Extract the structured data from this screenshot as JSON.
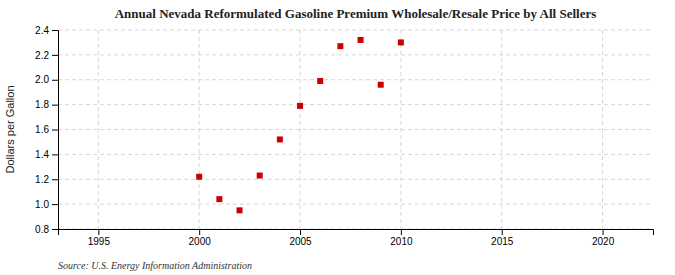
{
  "chart_data": {
    "type": "scatter",
    "title": "Annual Nevada Reformulated Gasoline Premium Wholesale/Resale Price by All Sellers",
    "ylabel": "Dollars per Gallon",
    "source": "Source: U.S. Energy Information Administration",
    "x": [
      2000,
      2001,
      2002,
      2003,
      2004,
      2005,
      2006,
      2007,
      2008,
      2009,
      2010
    ],
    "values": [
      1.22,
      1.04,
      0.95,
      1.23,
      1.52,
      1.79,
      1.99,
      2.27,
      2.32,
      1.96,
      2.3
    ],
    "color": "#cc0000",
    "marker": "square",
    "xlim": [
      1993,
      2022.5
    ],
    "xticks": [
      1995,
      2000,
      2005,
      2010,
      2015,
      2020
    ],
    "ylim": [
      0.8,
      2.4
    ],
    "yticks": [
      0.8,
      {
        "value": 1.0,
        "label": "1.0"
      },
      1.2,
      1.4,
      1.6,
      1.8,
      {
        "value": 2.0,
        "label": "2.0"
      },
      2.2,
      2.4
    ],
    "grid": true
  }
}
